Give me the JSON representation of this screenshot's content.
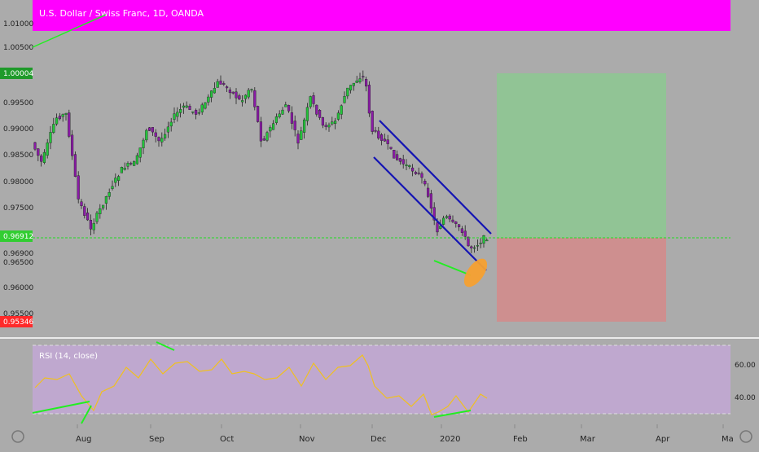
{
  "header": {
    "title": "U.S. Dollar / Swiss Franc, 1D, OANDA",
    "bg_color": "#ff00ff"
  },
  "colors": {
    "background": "#ababab",
    "up_candle": "#22c43a",
    "down_candle": "#8a1aa6",
    "channel": "#1414b4",
    "divergence": "#22ee22",
    "ellipse": "#f5a030",
    "profit_zone": "#8cc890",
    "loss_zone": "#d48a8a",
    "rsi_line": "#f0c020",
    "rsi_band": "#c4a8d8",
    "price_line": "#22dd22"
  },
  "price_axis": {
    "labels": [
      "1.01000",
      "1.00500",
      "1.00004",
      "0.99500",
      "0.99000",
      "0.98500",
      "0.98000",
      "0.97500",
      "0.96912",
      "0.96900",
      "0.96500",
      "0.96000",
      "0.95500",
      "0.95346"
    ],
    "badges": [
      {
        "text": "1.00004",
        "color": "#1f9a2a"
      },
      {
        "text": "0.96912",
        "color": "#32cd32"
      },
      {
        "text": "0.95346",
        "color": "#ff2a2a"
      }
    ]
  },
  "rsi": {
    "title": "RSI (14, close)",
    "labels": [
      "60.00",
      "40.00"
    ]
  },
  "time_axis": {
    "labels": [
      "Aug",
      "Sep",
      "Oct",
      "Nov",
      "Dec",
      "2020",
      "Feb",
      "Mar",
      "Apr",
      "Ma"
    ]
  },
  "chart_data": {
    "type": "candlestick",
    "symbol": "USDCHF",
    "price_ylim": [
      0.9515,
      1.0125
    ],
    "current_price": 0.96912,
    "trade": {
      "entry": 0.96912,
      "target": 1.00004,
      "stop": 0.95346
    },
    "rsi_ylim": [
      28,
      72
    ],
    "rsi_levels": [
      70,
      30
    ]
  },
  "footer": {
    "left_icon": "gear-icon",
    "right_icon": "gear-icon"
  }
}
